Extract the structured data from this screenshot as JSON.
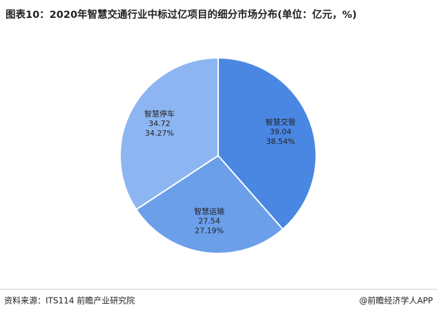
{
  "chart_data": {
    "type": "pie",
    "title": "图表10：2020年智慧交通行业中标过亿项目的细分市场分布(单位：亿元，%)",
    "categories": [
      "智慧交管",
      "智慧运输",
      "智慧停车"
    ],
    "values": [
      39.04,
      27.54,
      34.72
    ],
    "percent_labels": [
      "38.54%",
      "27.19%",
      "34.27%"
    ],
    "colors": [
      "#4a87e2",
      "#6b9fea",
      "#8db5f1"
    ],
    "source": "资料来源：ITS114 前瞻产业研究院",
    "credit": "@前瞻经济学人APP"
  }
}
